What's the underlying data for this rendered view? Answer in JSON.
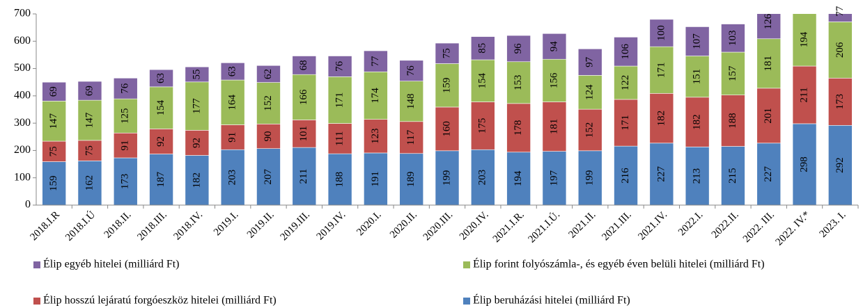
{
  "chart_data": {
    "type": "stacked_bar",
    "categories": [
      "2018.I.R",
      "2018.I.Ú",
      "2018.II.",
      "2018.III.",
      "2018.IV.",
      "2019.I.",
      "2019.II.",
      "2019.III.",
      "2019.IV.",
      "2020.I.",
      "2020.II.",
      "2020.III.",
      "2020.IV.",
      "2021.I.R.",
      "2021.I.Ú.",
      "2021.II.",
      "2021.III.",
      "2021.IV.",
      "2022.I.",
      "2022.II.",
      "2022. III.",
      "2022. IV.*",
      "2023. I."
    ],
    "series": [
      {
        "name": "Élip beruházási hitelei (milliárd Ft)",
        "color": "#4f81bd",
        "values": [
          159,
          162,
          173,
          187,
          182,
          203,
          207,
          211,
          188,
          191,
          189,
          199,
          203,
          194,
          197,
          199,
          216,
          227,
          213,
          215,
          227,
          298,
          292
        ]
      },
      {
        "name": "Élip hosszú lejáratú forgóeszköz hitelei (milliárd Ft)",
        "color": "#c0504d",
        "values": [
          75,
          75,
          91,
          92,
          92,
          91,
          90,
          101,
          111,
          123,
          117,
          160,
          175,
          178,
          181,
          152,
          171,
          182,
          182,
          188,
          201,
          211,
          173
        ]
      },
      {
        "name": "Élip forint folyószámla-, és egyéb éven belüli hitelei (milliárd Ft)",
        "color": "#9bbb59",
        "values": [
          147,
          147,
          125,
          154,
          177,
          164,
          152,
          166,
          171,
          174,
          148,
          159,
          154,
          153,
          156,
          124,
          122,
          171,
          151,
          157,
          181,
          194,
          206
        ]
      },
      {
        "name": "Élip egyéb hitelei (milliárd Ft)",
        "color": "#8064a2",
        "values": [
          69,
          69,
          76,
          63,
          55,
          63,
          62,
          68,
          76,
          77,
          76,
          75,
          85,
          96,
          94,
          97,
          106,
          100,
          107,
          103,
          126,
          null,
          77
        ]
      }
    ],
    "ylim": [
      0,
      700
    ],
    "yticks": [
      0,
      100,
      200,
      300,
      400,
      500,
      600,
      700
    ]
  }
}
